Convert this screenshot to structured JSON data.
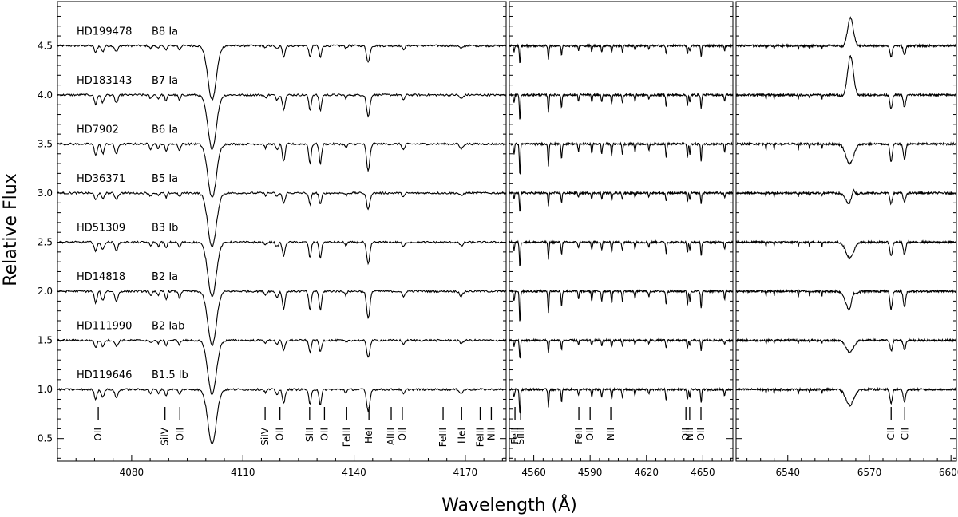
{
  "chart_data": {
    "type": "line",
    "xlabel": "Wavelength (Å)",
    "ylabel": "Relative Flux",
    "yticks": [
      0.5,
      1.0,
      1.5,
      2.0,
      2.5,
      3.0,
      3.5,
      4.0,
      4.5
    ],
    "ylim": [
      0.27,
      4.95
    ],
    "panels": [
      {
        "xlim": [
          4060,
          4181
        ],
        "xticks": [
          4080,
          4110,
          4140,
          4170
        ]
      },
      {
        "xlim": [
          4547,
          4666
        ],
        "xticks": [
          4560,
          4590,
          4620,
          4650
        ]
      },
      {
        "xlim": [
          6521,
          6602
        ],
        "xticks": [
          6540,
          6570,
          6600
        ]
      }
    ],
    "stars": [
      {
        "name": "HD199478",
        "sptype": "B8 Ia",
        "offset": 4.5
      },
      {
        "name": "HD183143",
        "sptype": "B7 Ia",
        "offset": 4.0
      },
      {
        "name": "HD7902",
        "sptype": "B6 Ia",
        "offset": 3.5
      },
      {
        "name": "HD36371",
        "sptype": "B5 Ia",
        "offset": 3.0
      },
      {
        "name": "HD51309",
        "sptype": "B3 Ib",
        "offset": 2.5
      },
      {
        "name": "HD14818",
        "sptype": "B2 Ia",
        "offset": 2.0
      },
      {
        "name": "HD111990",
        "sptype": "B2 Iab",
        "offset": 1.5
      },
      {
        "name": "HD119646",
        "sptype": "B1.5 Ib",
        "offset": 1.0
      }
    ],
    "line_ids": [
      [
        {
          "label": "OII",
          "wavelength": 4071
        },
        {
          "label": "SiIV",
          "wavelength": 4089
        },
        {
          "label": "OII",
          "wavelength": 4093
        },
        {
          "label": "SiIV",
          "wavelength": 4116
        },
        {
          "label": "OII",
          "wavelength": 4120
        },
        {
          "label": "SiII",
          "wavelength": 4128
        },
        {
          "label": "OII",
          "wavelength": 4132
        },
        {
          "label": "FeIII",
          "wavelength": 4138
        },
        {
          "label": "HeI",
          "wavelength": 4144
        },
        {
          "label": "AlIII",
          "wavelength": 4150
        },
        {
          "label": "OII",
          "wavelength": 4153
        },
        {
          "label": "FeIII",
          "wavelength": 4164
        },
        {
          "label": "HeI",
          "wavelength": 4169
        },
        {
          "label": "FeIII",
          "wavelength": 4174
        },
        {
          "label": "NII",
          "wavelength": 4177
        }
      ],
      [
        {
          "label": "FeII",
          "wavelength": 4550
        },
        {
          "label": "SiIII",
          "wavelength": 4553
        },
        {
          "label": "FeII",
          "wavelength": 4584
        },
        {
          "label": "OII",
          "wavelength": 4590
        },
        {
          "label": "NII",
          "wavelength": 4601
        },
        {
          "label": "OII",
          "wavelength": 4641
        },
        {
          "label": "NII",
          "wavelength": 4643
        },
        {
          "label": "OII",
          "wavelength": 4649
        }
      ],
      [
        {
          "label": "CII",
          "wavelength": 6578
        },
        {
          "label": "CII",
          "wavelength": 6583
        }
      ]
    ]
  }
}
